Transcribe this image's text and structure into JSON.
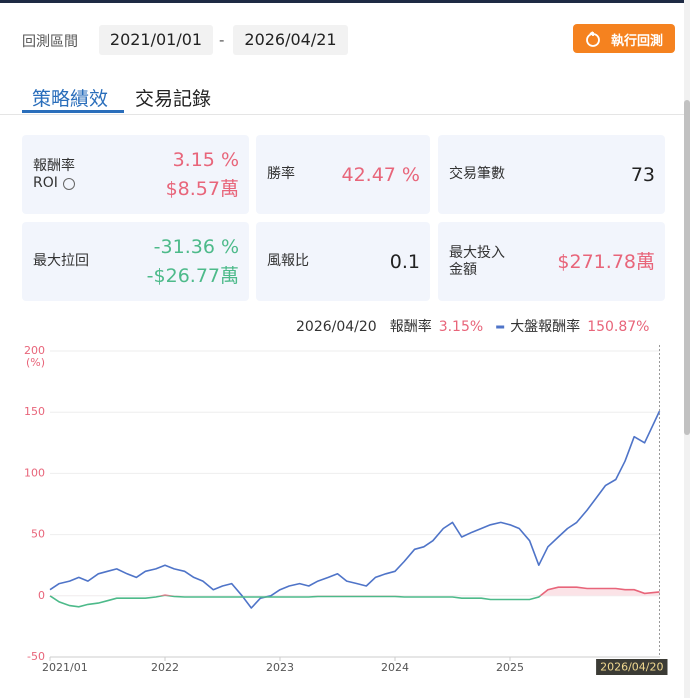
{
  "header": {
    "range_label": "回測區間",
    "start_date": "2021/01/01",
    "separator": "-",
    "end_date": "2026/04/21",
    "run_button": "執行回測"
  },
  "tabs": [
    {
      "label": "策略績效",
      "active": true
    },
    {
      "label": "交易記錄",
      "active": false
    }
  ],
  "metrics": [
    {
      "label": [
        "報酬率",
        "ROI"
      ],
      "info_icon": true,
      "values": [
        {
          "text": "3.15 %",
          "tone": "up"
        },
        {
          "text": "$8.57萬",
          "tone": "up"
        }
      ]
    },
    {
      "label": [
        "勝率"
      ],
      "values": [
        {
          "text": "42.47 %",
          "tone": "up"
        }
      ]
    },
    {
      "label": [
        "交易筆數"
      ],
      "values": [
        {
          "text": "73",
          "tone": "plain"
        }
      ]
    },
    {
      "label": [
        "最大拉回"
      ],
      "values": [
        {
          "text": "-31.36 %",
          "tone": "down"
        },
        {
          "text": "-$26.77萬",
          "tone": "down"
        }
      ]
    },
    {
      "label": [
        "風報比"
      ],
      "values": [
        {
          "text": "0.1",
          "tone": "plain"
        }
      ]
    },
    {
      "label": [
        "最大投入",
        "金額"
      ],
      "values": [
        {
          "text": "$271.78萬",
          "tone": "up"
        }
      ]
    }
  ],
  "chart_data": {
    "type": "line",
    "legend_date": "2026/04/20",
    "y_unit": "(%)",
    "x": [
      2021.0,
      2021.08,
      2021.17,
      2021.25,
      2021.33,
      2021.42,
      2021.5,
      2021.58,
      2021.67,
      2021.75,
      2021.83,
      2021.92,
      2022.0,
      2022.08,
      2022.17,
      2022.25,
      2022.33,
      2022.42,
      2022.5,
      2022.58,
      2022.67,
      2022.75,
      2022.83,
      2022.92,
      2023.0,
      2023.08,
      2023.17,
      2023.25,
      2023.33,
      2023.42,
      2023.5,
      2023.58,
      2023.67,
      2023.75,
      2023.83,
      2023.92,
      2024.0,
      2024.08,
      2024.17,
      2024.25,
      2024.33,
      2024.42,
      2024.5,
      2024.58,
      2024.67,
      2024.75,
      2024.83,
      2024.92,
      2025.0,
      2025.08,
      2025.17,
      2025.25,
      2025.33,
      2025.42,
      2025.5,
      2025.58,
      2025.67,
      2025.75,
      2025.83,
      2025.92,
      2026.0,
      2026.08,
      2026.17,
      2026.3
    ],
    "series": [
      {
        "name": "報酬率",
        "readout": "3.15%",
        "color_positive": "#e8657a",
        "color_negative": "#4dba8a",
        "fill_positive": "#fbe3e7",
        "values": [
          0,
          -5,
          -8,
          -9,
          -7,
          -6,
          -4,
          -2,
          -2,
          -2,
          -2,
          -1,
          0.5,
          -0.5,
          -1,
          -1,
          -1,
          -1,
          -1,
          -1,
          -1,
          -1,
          -1,
          -1,
          -1,
          -1,
          -1,
          -1,
          -0.5,
          -0.5,
          -0.5,
          -0.5,
          -0.5,
          -0.5,
          -0.5,
          -0.5,
          -0.5,
          -1,
          -1,
          -1,
          -1,
          -1,
          -1,
          -2,
          -2,
          -2,
          -3,
          -3,
          -3,
          -3,
          -3,
          -1,
          5,
          7,
          7,
          7,
          6,
          6,
          6,
          6,
          5,
          5,
          2,
          3.15
        ]
      },
      {
        "name": "大盤報酬率",
        "readout": "150.87%",
        "color": "#4f74c8",
        "values": [
          5,
          10,
          12,
          15,
          12,
          18,
          20,
          22,
          18,
          15,
          20,
          22,
          25,
          22,
          20,
          15,
          12,
          5,
          8,
          10,
          0,
          -10,
          -2,
          0,
          5,
          8,
          10,
          8,
          12,
          15,
          18,
          12,
          10,
          8,
          15,
          18,
          20,
          28,
          38,
          40,
          45,
          55,
          60,
          48,
          52,
          55,
          58,
          60,
          58,
          55,
          45,
          25,
          40,
          48,
          55,
          60,
          70,
          80,
          90,
          95,
          110,
          130,
          125,
          150.87
        ]
      }
    ],
    "xlim": [
      2021,
      2026.31
    ],
    "ylim": [
      -50,
      200
    ],
    "xticks": [
      {
        "value": 2021,
        "label": "2021/01"
      },
      2022,
      2023,
      2024,
      2025
    ],
    "yticks": [
      200,
      150,
      100,
      50,
      0,
      -50
    ],
    "grid": true,
    "cursor": {
      "x": 2026.3,
      "label": "2026/04/20"
    }
  }
}
